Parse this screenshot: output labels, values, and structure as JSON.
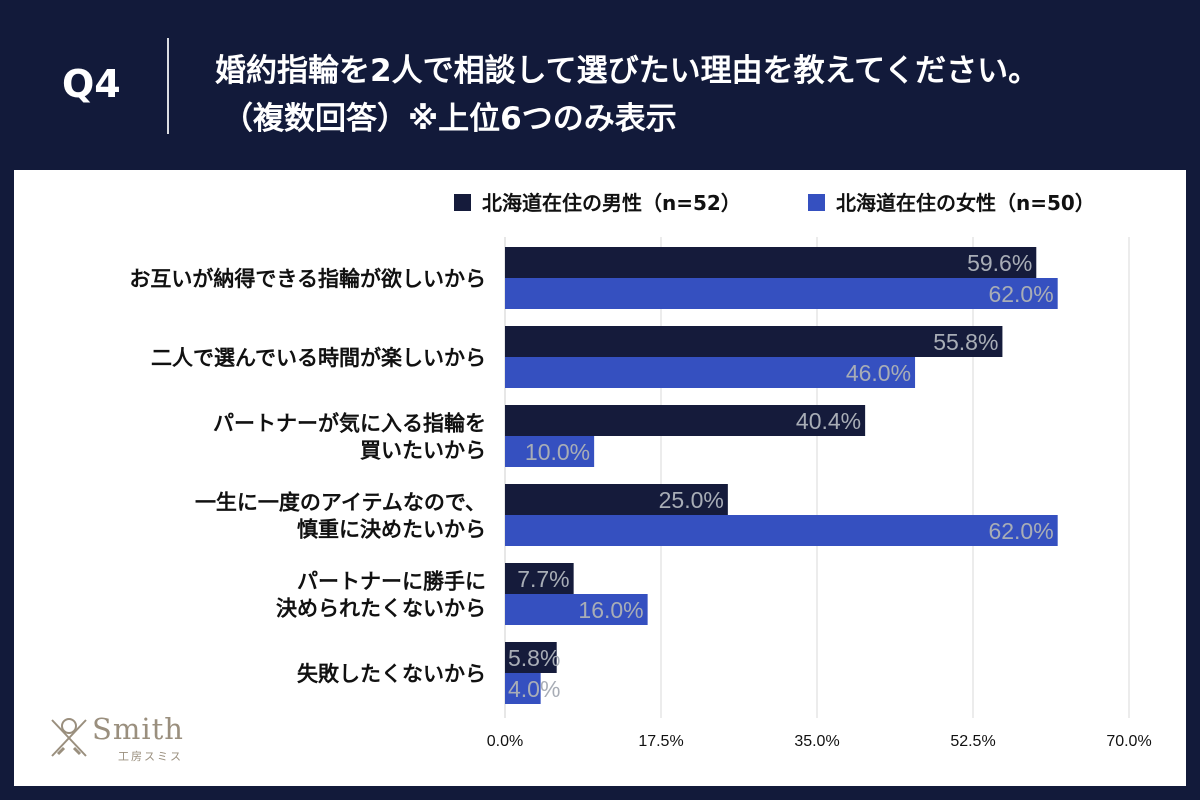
{
  "header": {
    "question_number": "Q4",
    "title_line1": "婚約指輪を2人で相談して選びたい理由を教えてください。",
    "title_line2": "（複数回答）※上位6つのみ表示"
  },
  "logo": {
    "word": "Smith",
    "sub": "工房スミス"
  },
  "colors": {
    "background": "#121a3a",
    "male": "#151b3b",
    "female": "#3550c0",
    "value_label": "#a8adb6",
    "grid": "#d9d9d9",
    "text": "#111111"
  },
  "chart_data": {
    "type": "bar",
    "orientation": "horizontal",
    "categories": [
      [
        "お互いが納得できる指輪が欲しいから"
      ],
      [
        "二人で選んでいる時間が楽しいから"
      ],
      [
        "パートナーが気に入る指輪を",
        "買いたいから"
      ],
      [
        "一生に一度のアイテムなので、",
        "慎重に決めたいから"
      ],
      [
        "パートナーに勝手に",
        "決められたくないから"
      ],
      [
        "失敗したくないから"
      ]
    ],
    "series": [
      {
        "name": "北海道在住の男性（n=52）",
        "values": [
          59.6,
          55.8,
          40.4,
          25.0,
          7.7,
          5.8
        ],
        "labels": [
          "59.6%",
          "55.8%",
          "40.4%",
          "25.0%",
          "7.7%",
          "5.8%"
        ]
      },
      {
        "name": "北海道在住の女性（n=50）",
        "values": [
          62.0,
          46.0,
          10.0,
          62.0,
          16.0,
          4.0
        ],
        "labels": [
          "62.0%",
          "46.0%",
          "10.0%",
          "62.0%",
          "16.0%",
          "4.0%"
        ]
      }
    ],
    "xlim": [
      0,
      70
    ],
    "xticks": [
      0,
      17.5,
      35,
      52.5,
      70
    ],
    "xtick_labels": [
      "0.0%",
      "17.5%",
      "35.0%",
      "52.5%",
      "70.0%"
    ],
    "legend_position": "top-right",
    "grid": true
  }
}
